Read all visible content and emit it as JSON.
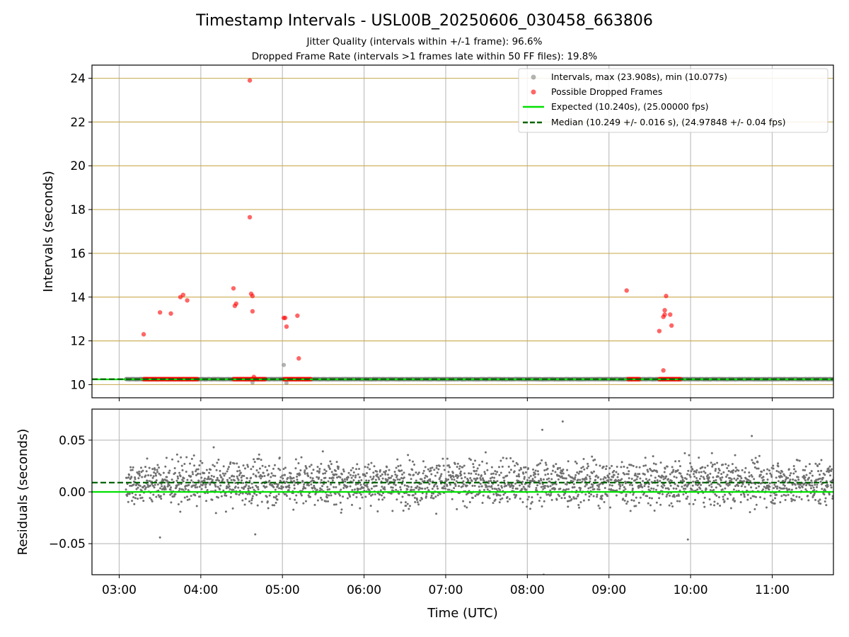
{
  "title": "Timestamp Intervals - USL00B_20250606_030458_663806",
  "subtitle_lines": [
    "Jitter Quality (intervals within +/-1 frame): 96.6%",
    "Dropped Frame Rate (intervals >1 frames late within 50 FF files): 19.8%"
  ],
  "colors": {
    "intervals": "#808080",
    "dropped": "#ff0000",
    "expected": "#00e000",
    "median": "#006400",
    "hgrid_top": "#c8a84c",
    "grid": "#b0b0b0"
  },
  "chart_data": [
    {
      "type": "scatter",
      "panel": "top",
      "ylabel": "Intervals (seconds)",
      "xlabel": "",
      "xlim": [
        "02:40",
        "11:45"
      ],
      "ylim": [
        9.4,
        24.6
      ],
      "yticks": [
        "10",
        "12",
        "14",
        "16",
        "18",
        "20",
        "22",
        "24"
      ],
      "ytick_values": [
        10,
        12,
        14,
        16,
        18,
        20,
        22,
        24
      ],
      "grid": "on",
      "legend_position": "top-right",
      "legend": [
        "Intervals, max (23.908s), min (10.077s)",
        "Possible Dropped Frames",
        "Expected (10.240s), (25.00000 fps)",
        "Median (10.249 +/- 0.016 s), (24.97848 +/- 0.04 fps)"
      ],
      "expected": 10.24,
      "median": 10.249,
      "intervals": {
        "x_start": "03:05",
        "x_end": "11:45",
        "baseline": 10.25,
        "max": 23.908,
        "min": 10.077,
        "outliers": [
          {
            "x": "05:01",
            "y": 10.9
          },
          {
            "x": "05:03",
            "y": 10.08
          },
          {
            "x": "04:38",
            "y": 10.1
          }
        ]
      },
      "dropped_frames": {
        "band_segments": [
          [
            "03:18",
            "03:58"
          ],
          [
            "04:24",
            "04:48"
          ],
          [
            "05:01",
            "05:21"
          ],
          [
            "09:14",
            "09:23"
          ],
          [
            "09:37",
            "09:53"
          ]
        ],
        "band_value": 10.25,
        "points": [
          {
            "x": "03:18",
            "y": 12.3
          },
          {
            "x": "03:30",
            "y": 13.3
          },
          {
            "x": "03:38",
            "y": 13.25
          },
          {
            "x": "03:45",
            "y": 14.0
          },
          {
            "x": "03:47",
            "y": 14.1
          },
          {
            "x": "03:50",
            "y": 13.85
          },
          {
            "x": "04:24",
            "y": 14.4
          },
          {
            "x": "04:25",
            "y": 13.6
          },
          {
            "x": "04:26",
            "y": 13.7
          },
          {
            "x": "04:36",
            "y": 23.9
          },
          {
            "x": "04:36",
            "y": 17.65
          },
          {
            "x": "04:37",
            "y": 14.15
          },
          {
            "x": "04:38",
            "y": 14.05
          },
          {
            "x": "04:38",
            "y": 13.35
          },
          {
            "x": "04:39",
            "y": 10.35
          },
          {
            "x": "05:01",
            "y": 13.05
          },
          {
            "x": "05:02",
            "y": 13.05
          },
          {
            "x": "05:03",
            "y": 12.65
          },
          {
            "x": "05:11",
            "y": 13.15
          },
          {
            "x": "05:12",
            "y": 11.2
          },
          {
            "x": "09:13",
            "y": 14.3
          },
          {
            "x": "09:37",
            "y": 12.45
          },
          {
            "x": "09:40",
            "y": 13.1
          },
          {
            "x": "09:41",
            "y": 13.2
          },
          {
            "x": "09:41",
            "y": 13.4
          },
          {
            "x": "09:42",
            "y": 14.05
          },
          {
            "x": "09:45",
            "y": 13.2
          },
          {
            "x": "09:46",
            "y": 12.7
          },
          {
            "x": "09:40",
            "y": 10.65
          }
        ]
      }
    },
    {
      "type": "scatter",
      "panel": "bottom",
      "ylabel": "Residuals (seconds)",
      "xlabel": "Time (UTC)",
      "xlim": [
        "02:40",
        "11:45"
      ],
      "ylim": [
        -0.08,
        0.08
      ],
      "yticks": [
        "0.05",
        "0.00",
        "−0.05"
      ],
      "ytick_values": [
        0.05,
        0.0,
        -0.05
      ],
      "xticks": [
        "03:00",
        "04:00",
        "05:00",
        "06:00",
        "07:00",
        "08:00",
        "09:00",
        "10:00",
        "11:00"
      ],
      "grid": "on",
      "expected": 0.0,
      "median": 0.009,
      "residuals": {
        "x_start": "03:05",
        "x_end": "11:45",
        "center": 0.009,
        "spread": 0.015,
        "extremes": [
          {
            "x": "08:26",
            "y": 0.068
          },
          {
            "x": "08:11",
            "y": 0.06
          },
          {
            "x": "08:12",
            "y": -0.08
          },
          {
            "x": "03:30",
            "y": -0.044
          },
          {
            "x": "09:58",
            "y": -0.046
          },
          {
            "x": "04:40",
            "y": -0.041
          },
          {
            "x": "10:45",
            "y": 0.054
          }
        ]
      }
    }
  ]
}
